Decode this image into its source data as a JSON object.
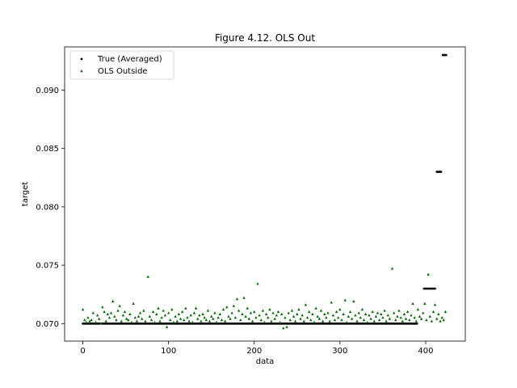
{
  "chart_data": {
    "type": "scatter",
    "title": "Figure 4.12. OLS Out",
    "xlabel": "data",
    "ylabel": "target",
    "xlim": [
      -21.25,
      446.25
    ],
    "ylim": [
      0.0685,
      0.0937
    ],
    "xticks": [
      0,
      100,
      200,
      300,
      400
    ],
    "xtick_labels": [
      "0",
      "100",
      "200",
      "300",
      "400"
    ],
    "yticks": [
      0.07,
      0.075,
      0.08,
      0.085,
      0.09
    ],
    "ytick_labels": [
      "0.070",
      "0.075",
      "0.080",
      "0.085",
      "0.090"
    ],
    "grid": false,
    "legend_position": "upper-left",
    "colors": {
      "true": "#000000",
      "ols": "#006400"
    },
    "series": [
      {
        "name": "True (Averaged)",
        "marker": "dot",
        "segments": [
          {
            "x_from": 0,
            "x_to": 390,
            "y": 0.07
          },
          {
            "x_from": 398,
            "x_to": 411,
            "y": 0.073
          },
          {
            "x_from": 413,
            "x_to": 418,
            "y": 0.083
          },
          {
            "x_from": 420,
            "x_to": 424,
            "y": 0.093
          }
        ]
      },
      {
        "name": "OLS Outside",
        "marker": "triangle",
        "points": [
          [
            0,
            0.0712
          ],
          [
            2,
            0.0703
          ],
          [
            4,
            0.0701
          ],
          [
            6,
            0.0705
          ],
          [
            8,
            0.0702
          ],
          [
            10,
            0.0703
          ],
          [
            12,
            0.0709
          ],
          [
            15,
            0.0701
          ],
          [
            17,
            0.0707
          ],
          [
            19,
            0.0704
          ],
          [
            21,
            0.07
          ],
          [
            23,
            0.0714
          ],
          [
            25,
            0.071
          ],
          [
            27,
            0.0702
          ],
          [
            29,
            0.0708
          ],
          [
            31,
            0.0705
          ],
          [
            33,
            0.0709
          ],
          [
            35,
            0.0719
          ],
          [
            37,
            0.0706
          ],
          [
            39,
            0.0703
          ],
          [
            41,
            0.0711
          ],
          [
            43,
            0.0715
          ],
          [
            45,
            0.0702
          ],
          [
            47,
            0.0707
          ],
          [
            49,
            0.071
          ],
          [
            51,
            0.0704
          ],
          [
            53,
            0.0703
          ],
          [
            55,
            0.0708
          ],
          [
            57,
            0.0701
          ],
          [
            59,
            0.0717
          ],
          [
            61,
            0.0705
          ],
          [
            63,
            0.0702
          ],
          [
            65,
            0.0706
          ],
          [
            67,
            0.0709
          ],
          [
            69,
            0.0704
          ],
          [
            71,
            0.0711
          ],
          [
            73,
            0.0702
          ],
          [
            76,
            0.074
          ],
          [
            78,
            0.0706
          ],
          [
            80,
            0.0703
          ],
          [
            82,
            0.071
          ],
          [
            84,
            0.0701
          ],
          [
            86,
            0.0708
          ],
          [
            88,
            0.0713
          ],
          [
            90,
            0.0702
          ],
          [
            92,
            0.0705
          ],
          [
            94,
            0.0711
          ],
          [
            96,
            0.0707
          ],
          [
            98,
            0.0697
          ],
          [
            100,
            0.0709
          ],
          [
            102,
            0.0703
          ],
          [
            104,
            0.0712
          ],
          [
            106,
            0.0701
          ],
          [
            108,
            0.0706
          ],
          [
            110,
            0.0702
          ],
          [
            112,
            0.0708
          ],
          [
            114,
            0.0704
          ],
          [
            116,
            0.071
          ],
          [
            118,
            0.0703
          ],
          [
            120,
            0.0713
          ],
          [
            122,
            0.0705
          ],
          [
            124,
            0.0702
          ],
          [
            126,
            0.0707
          ],
          [
            128,
            0.0701
          ],
          [
            130,
            0.0709
          ],
          [
            132,
            0.0713
          ],
          [
            134,
            0.0704
          ],
          [
            136,
            0.0707
          ],
          [
            138,
            0.0702
          ],
          [
            140,
            0.0708
          ],
          [
            142,
            0.0705
          ],
          [
            144,
            0.0703
          ],
          [
            146,
            0.0711
          ],
          [
            148,
            0.0702
          ],
          [
            150,
            0.0706
          ],
          [
            152,
            0.0704
          ],
          [
            154,
            0.0709
          ],
          [
            156,
            0.0701
          ],
          [
            158,
            0.0705
          ],
          [
            160,
            0.0708
          ],
          [
            162,
            0.0703
          ],
          [
            164,
            0.0712
          ],
          [
            166,
            0.0702
          ],
          [
            168,
            0.0714
          ],
          [
            170,
            0.0706
          ],
          [
            172,
            0.0704
          ],
          [
            174,
            0.0709
          ],
          [
            176,
            0.0715
          ],
          [
            178,
            0.0705
          ],
          [
            180,
            0.0721
          ],
          [
            182,
            0.0711
          ],
          [
            184,
            0.0703
          ],
          [
            186,
            0.0708
          ],
          [
            188,
            0.0722
          ],
          [
            190,
            0.0706
          ],
          [
            192,
            0.0713
          ],
          [
            194,
            0.0704
          ],
          [
            196,
            0.0709
          ],
          [
            198,
            0.0702
          ],
          [
            200,
            0.071
          ],
          [
            202,
            0.0705
          ],
          [
            204,
            0.0734
          ],
          [
            206,
            0.0707
          ],
          [
            208,
            0.0703
          ],
          [
            210,
            0.0711
          ],
          [
            212,
            0.0701
          ],
          [
            214,
            0.0708
          ],
          [
            216,
            0.0705
          ],
          [
            218,
            0.0712
          ],
          [
            220,
            0.0702
          ],
          [
            222,
            0.0709
          ],
          [
            224,
            0.0704
          ],
          [
            226,
            0.0707
          ],
          [
            228,
            0.071
          ],
          [
            230,
            0.0701
          ],
          [
            232,
            0.0708
          ],
          [
            234,
            0.0696
          ],
          [
            236,
            0.0705
          ],
          [
            238,
            0.0697
          ],
          [
            240,
            0.0709
          ],
          [
            242,
            0.0703
          ],
          [
            244,
            0.0711
          ],
          [
            246,
            0.0706
          ],
          [
            248,
            0.0702
          ],
          [
            250,
            0.0708
          ],
          [
            252,
            0.0712
          ],
          [
            254,
            0.0704
          ],
          [
            256,
            0.0707
          ],
          [
            258,
            0.0702
          ],
          [
            260,
            0.0716
          ],
          [
            262,
            0.0705
          ],
          [
            264,
            0.071
          ],
          [
            266,
            0.0703
          ],
          [
            268,
            0.0708
          ],
          [
            270,
            0.0701
          ],
          [
            272,
            0.0713
          ],
          [
            274,
            0.0706
          ],
          [
            276,
            0.0704
          ],
          [
            278,
            0.0711
          ],
          [
            280,
            0.0702
          ],
          [
            282,
            0.0708
          ],
          [
            284,
            0.0705
          ],
          [
            286,
            0.0709
          ],
          [
            288,
            0.0702
          ],
          [
            290,
            0.0718
          ],
          [
            292,
            0.0707
          ],
          [
            294,
            0.0703
          ],
          [
            296,
            0.071
          ],
          [
            298,
            0.0705
          ],
          [
            300,
            0.0712
          ],
          [
            302,
            0.0703
          ],
          [
            304,
            0.0708
          ],
          [
            306,
            0.072
          ],
          [
            308,
            0.0701
          ],
          [
            310,
            0.0706
          ],
          [
            312,
            0.071
          ],
          [
            314,
            0.0704
          ],
          [
            316,
            0.0719
          ],
          [
            318,
            0.0707
          ],
          [
            320,
            0.0702
          ],
          [
            322,
            0.0709
          ],
          [
            324,
            0.0705
          ],
          [
            326,
            0.0712
          ],
          [
            328,
            0.0703
          ],
          [
            330,
            0.0708
          ],
          [
            332,
            0.0701
          ],
          [
            334,
            0.0707
          ],
          [
            336,
            0.0704
          ],
          [
            338,
            0.071
          ],
          [
            340,
            0.0702
          ],
          [
            342,
            0.0706
          ],
          [
            344,
            0.0709
          ],
          [
            346,
            0.0703
          ],
          [
            348,
            0.0708
          ],
          [
            350,
            0.0705
          ],
          [
            352,
            0.0711
          ],
          [
            354,
            0.0702
          ],
          [
            356,
            0.0707
          ],
          [
            358,
            0.0704
          ],
          [
            361,
            0.0747
          ],
          [
            363,
            0.0709
          ],
          [
            365,
            0.0703
          ],
          [
            367,
            0.0706
          ],
          [
            369,
            0.0711
          ],
          [
            371,
            0.0705
          ],
          [
            373,
            0.0702
          ],
          [
            375,
            0.0708
          ],
          [
            377,
            0.0704
          ],
          [
            379,
            0.071
          ],
          [
            381,
            0.0703
          ],
          [
            383,
            0.0707
          ],
          [
            385,
            0.0717
          ],
          [
            387,
            0.0705
          ],
          [
            389,
            0.0702
          ],
          [
            391,
            0.0712
          ],
          [
            393,
            0.0706
          ],
          [
            395,
            0.0704
          ],
          [
            397,
            0.0709
          ],
          [
            399,
            0.0717
          ],
          [
            401,
            0.0703
          ],
          [
            403,
            0.0742
          ],
          [
            405,
            0.0706
          ],
          [
            407,
            0.0702
          ],
          [
            409,
            0.071
          ],
          [
            411,
            0.0716
          ],
          [
            413,
            0.0704
          ],
          [
            415,
            0.0708
          ],
          [
            417,
            0.0702
          ],
          [
            419,
            0.0705
          ],
          [
            421,
            0.0703
          ],
          [
            423,
            0.071
          ]
        ]
      }
    ]
  }
}
